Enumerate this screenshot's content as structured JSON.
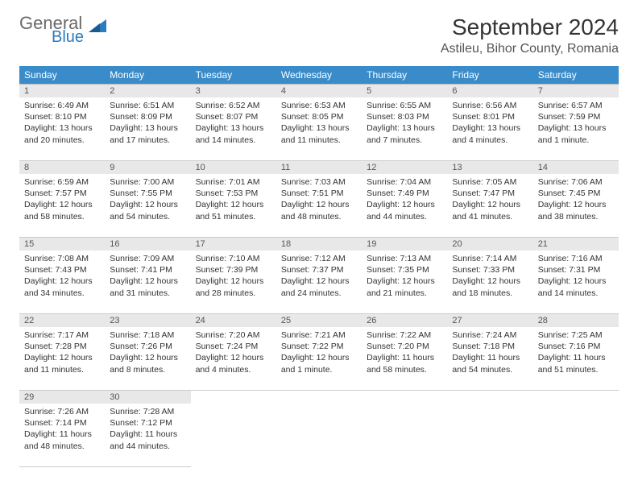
{
  "logo": {
    "general": "General",
    "blue": "Blue"
  },
  "title": "September 2024",
  "location": "Astileu, Bihor County, Romania",
  "colors": {
    "header_bg": "#3a8bc9",
    "header_text": "#ffffff",
    "daynum_bg": "#e8e8e8",
    "border": "#cccccc",
    "text": "#333333",
    "logo_gray": "#6a6a6a",
    "logo_blue": "#2b7bbf"
  },
  "weekdays": [
    "Sunday",
    "Monday",
    "Tuesday",
    "Wednesday",
    "Thursday",
    "Friday",
    "Saturday"
  ],
  "weeks": [
    [
      {
        "d": "1",
        "sr": "6:49 AM",
        "ss": "8:10 PM",
        "dl": "13 hours and 20 minutes."
      },
      {
        "d": "2",
        "sr": "6:51 AM",
        "ss": "8:09 PM",
        "dl": "13 hours and 17 minutes."
      },
      {
        "d": "3",
        "sr": "6:52 AM",
        "ss": "8:07 PM",
        "dl": "13 hours and 14 minutes."
      },
      {
        "d": "4",
        "sr": "6:53 AM",
        "ss": "8:05 PM",
        "dl": "13 hours and 11 minutes."
      },
      {
        "d": "5",
        "sr": "6:55 AM",
        "ss": "8:03 PM",
        "dl": "13 hours and 7 minutes."
      },
      {
        "d": "6",
        "sr": "6:56 AM",
        "ss": "8:01 PM",
        "dl": "13 hours and 4 minutes."
      },
      {
        "d": "7",
        "sr": "6:57 AM",
        "ss": "7:59 PM",
        "dl": "13 hours and 1 minute."
      }
    ],
    [
      {
        "d": "8",
        "sr": "6:59 AM",
        "ss": "7:57 PM",
        "dl": "12 hours and 58 minutes."
      },
      {
        "d": "9",
        "sr": "7:00 AM",
        "ss": "7:55 PM",
        "dl": "12 hours and 54 minutes."
      },
      {
        "d": "10",
        "sr": "7:01 AM",
        "ss": "7:53 PM",
        "dl": "12 hours and 51 minutes."
      },
      {
        "d": "11",
        "sr": "7:03 AM",
        "ss": "7:51 PM",
        "dl": "12 hours and 48 minutes."
      },
      {
        "d": "12",
        "sr": "7:04 AM",
        "ss": "7:49 PM",
        "dl": "12 hours and 44 minutes."
      },
      {
        "d": "13",
        "sr": "7:05 AM",
        "ss": "7:47 PM",
        "dl": "12 hours and 41 minutes."
      },
      {
        "d": "14",
        "sr": "7:06 AM",
        "ss": "7:45 PM",
        "dl": "12 hours and 38 minutes."
      }
    ],
    [
      {
        "d": "15",
        "sr": "7:08 AM",
        "ss": "7:43 PM",
        "dl": "12 hours and 34 minutes."
      },
      {
        "d": "16",
        "sr": "7:09 AM",
        "ss": "7:41 PM",
        "dl": "12 hours and 31 minutes."
      },
      {
        "d": "17",
        "sr": "7:10 AM",
        "ss": "7:39 PM",
        "dl": "12 hours and 28 minutes."
      },
      {
        "d": "18",
        "sr": "7:12 AM",
        "ss": "7:37 PM",
        "dl": "12 hours and 24 minutes."
      },
      {
        "d": "19",
        "sr": "7:13 AM",
        "ss": "7:35 PM",
        "dl": "12 hours and 21 minutes."
      },
      {
        "d": "20",
        "sr": "7:14 AM",
        "ss": "7:33 PM",
        "dl": "12 hours and 18 minutes."
      },
      {
        "d": "21",
        "sr": "7:16 AM",
        "ss": "7:31 PM",
        "dl": "12 hours and 14 minutes."
      }
    ],
    [
      {
        "d": "22",
        "sr": "7:17 AM",
        "ss": "7:28 PM",
        "dl": "12 hours and 11 minutes."
      },
      {
        "d": "23",
        "sr": "7:18 AM",
        "ss": "7:26 PM",
        "dl": "12 hours and 8 minutes."
      },
      {
        "d": "24",
        "sr": "7:20 AM",
        "ss": "7:24 PM",
        "dl": "12 hours and 4 minutes."
      },
      {
        "d": "25",
        "sr": "7:21 AM",
        "ss": "7:22 PM",
        "dl": "12 hours and 1 minute."
      },
      {
        "d": "26",
        "sr": "7:22 AM",
        "ss": "7:20 PM",
        "dl": "11 hours and 58 minutes."
      },
      {
        "d": "27",
        "sr": "7:24 AM",
        "ss": "7:18 PM",
        "dl": "11 hours and 54 minutes."
      },
      {
        "d": "28",
        "sr": "7:25 AM",
        "ss": "7:16 PM",
        "dl": "11 hours and 51 minutes."
      }
    ],
    [
      {
        "d": "29",
        "sr": "7:26 AM",
        "ss": "7:14 PM",
        "dl": "11 hours and 48 minutes."
      },
      {
        "d": "30",
        "sr": "7:28 AM",
        "ss": "7:12 PM",
        "dl": "11 hours and 44 minutes."
      },
      null,
      null,
      null,
      null,
      null
    ]
  ],
  "labels": {
    "sunrise": "Sunrise:",
    "sunset": "Sunset:",
    "daylight": "Daylight:"
  }
}
